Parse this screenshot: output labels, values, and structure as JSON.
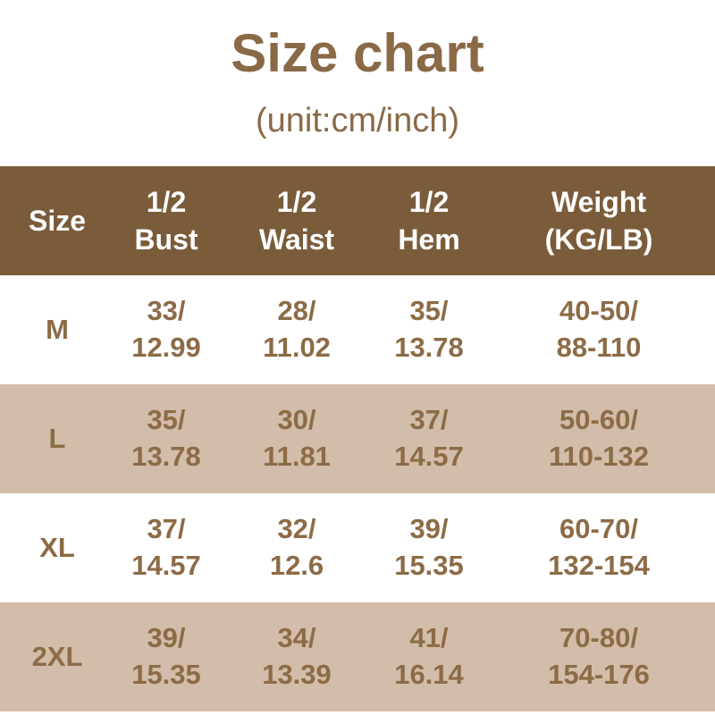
{
  "page": {
    "title": "Size chart",
    "subtitle": "(unit:cm/inch)"
  },
  "colors": {
    "header_bg": "#7a5c3b",
    "header_text": "#ffffff",
    "row_bg": "#ffffff",
    "row_alt_bg": "#d1bda9",
    "data_text": "#8c6b46",
    "title_text": "#8a6946"
  },
  "table": {
    "header": {
      "size": "Size",
      "bust": "1/2\nBust",
      "waist": "1/2\nWaist",
      "hem": "1/2\nHem",
      "weight": "Weight\n(KG/LB)"
    },
    "rows": [
      {
        "size": "M",
        "bust": "33/\n12.99",
        "waist": "28/\n11.02",
        "hem": "35/\n13.78",
        "weight": "40-50/\n88-110"
      },
      {
        "size": "L",
        "bust": "35/\n13.78",
        "waist": "30/\n11.81",
        "hem": "37/\n14.57",
        "weight": "50-60/\n110-132"
      },
      {
        "size": "XL",
        "bust": "37/\n14.57",
        "waist": "32/\n12.6",
        "hem": "39/\n15.35",
        "weight": "60-70/\n132-154"
      },
      {
        "size": "2XL",
        "bust": "39/\n15.35",
        "waist": "34/\n13.39",
        "hem": "41/\n16.14",
        "weight": "70-80/\n154-176"
      }
    ]
  },
  "chart_data": {
    "type": "table",
    "title": "Size chart",
    "subtitle": "(unit:cm/inch)",
    "unit": "cm/inch",
    "columns": [
      "Size",
      "1/2 Bust",
      "1/2 Waist",
      "1/2 Hem",
      "Weight (KG/LB)"
    ],
    "rows": [
      [
        "M",
        "33/12.99",
        "28/11.02",
        "35/13.78",
        "40-50/88-110"
      ],
      [
        "L",
        "35/13.78",
        "30/11.81",
        "37/14.57",
        "50-60/110-132"
      ],
      [
        "XL",
        "37/14.57",
        "32/12.6",
        "39/15.35",
        "60-70/132-154"
      ],
      [
        "2XL",
        "39/15.35",
        "34/13.39",
        "41/16.14",
        "70-80/154-176"
      ]
    ]
  }
}
